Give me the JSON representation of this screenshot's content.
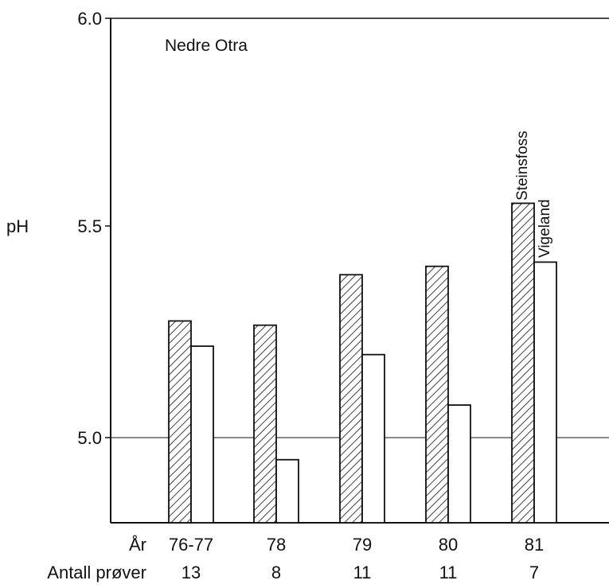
{
  "chart_data": {
    "type": "bar",
    "title": "Nedre Otra",
    "ylabel": "pH",
    "ylim": [
      4.8,
      6.0
    ],
    "yticks": [
      "6.0",
      "5.5",
      "5.0"
    ],
    "reference_line": 5.0,
    "row_labels": {
      "year": "År",
      "samples": "Antall prøver"
    },
    "categories": [
      "76-77",
      "78",
      "79",
      "80",
      "81"
    ],
    "sample_counts": [
      "13",
      "8",
      "11",
      "11",
      "7"
    ],
    "series": [
      {
        "name": "Steinsfoss",
        "pattern": "hatched",
        "values": [
          5.28,
          5.27,
          5.39,
          5.41,
          5.56
        ]
      },
      {
        "name": "Vigeland",
        "pattern": "open",
        "values": [
          5.22,
          4.95,
          5.2,
          5.08,
          5.42
        ]
      }
    ]
  },
  "colors": {
    "ink": "#111111",
    "background": "#ffffff"
  }
}
